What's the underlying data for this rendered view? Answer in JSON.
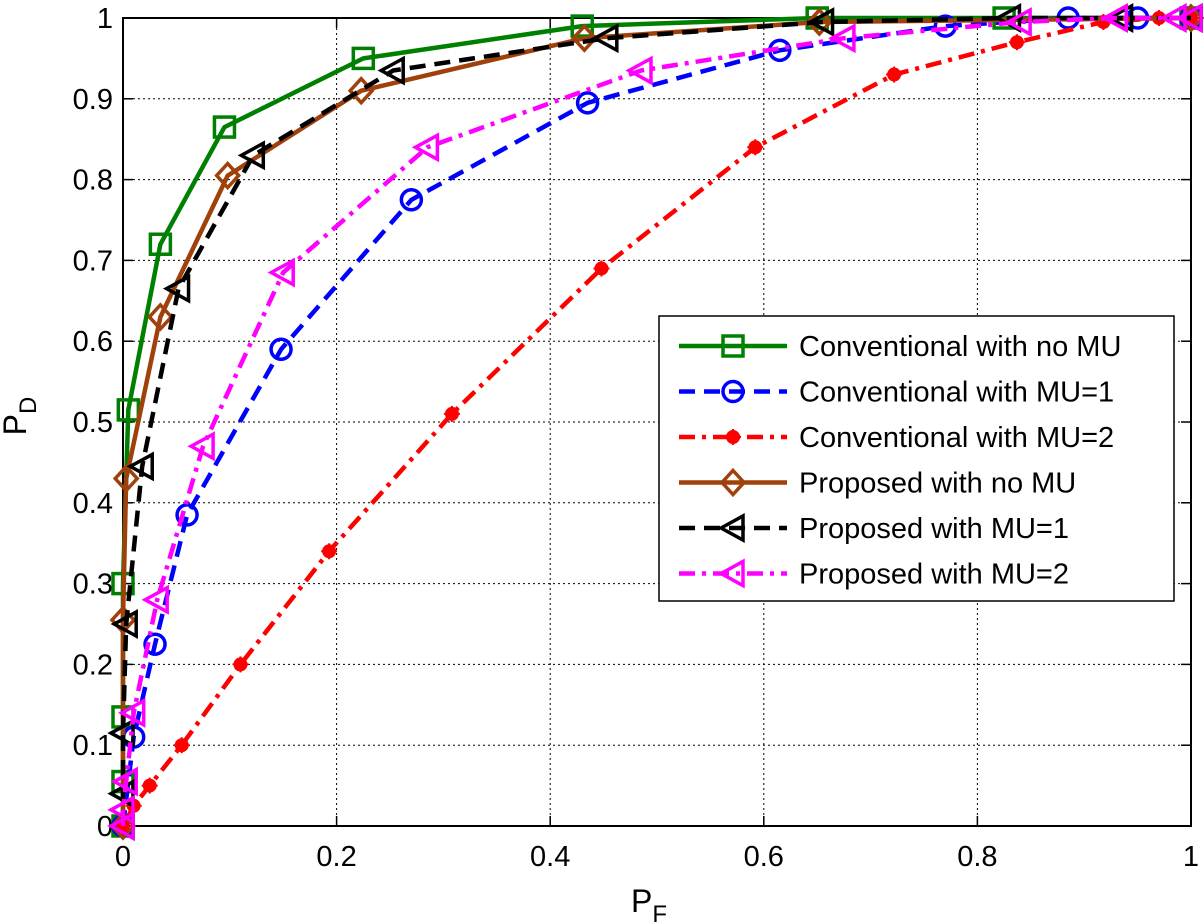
{
  "chart_data": {
    "type": "line",
    "title": "",
    "xlabel": "P",
    "xlabel_sub": "F",
    "ylabel": "P",
    "ylabel_sub": "D",
    "xlim": [
      0,
      1
    ],
    "ylim": [
      0,
      1
    ],
    "grid": true,
    "x_ticks": [
      0,
      0.2,
      0.4,
      0.6,
      0.8,
      1
    ],
    "y_ticks": [
      0,
      0.1,
      0.2,
      0.3,
      0.4,
      0.5,
      0.6,
      0.7,
      0.8,
      0.9,
      1
    ],
    "x_tick_labels": [
      "0",
      "0.2",
      "0.4",
      "0.6",
      "0.8",
      "1"
    ],
    "y_tick_labels": [
      "0",
      "0.1",
      "0.2",
      "0.3",
      "0.4",
      "0.5",
      "0.6",
      "0.7",
      "0.8",
      "0.9",
      "1"
    ],
    "legend_position": "center-right",
    "series": [
      {
        "name": "Conventional with no MU",
        "color": "#008000",
        "dash": "solid",
        "marker": "square",
        "x": [
          0,
          0,
          0,
          0,
          0.005,
          0.035,
          0.095,
          0.225,
          0.43,
          0.65,
          0.825,
          1
        ],
        "y": [
          0,
          0.055,
          0.135,
          0.3,
          0.515,
          0.72,
          0.865,
          0.95,
          0.99,
          1,
          1,
          1
        ]
      },
      {
        "name": "Conventional with MU=1",
        "color": "#0000FF",
        "dash": "dashed",
        "marker": "circle",
        "x": [
          0,
          0.01,
          0.03,
          0.06,
          0.148,
          0.27,
          0.435,
          0.615,
          0.77,
          0.885,
          0.95,
          1
        ],
        "y": [
          0,
          0.11,
          0.225,
          0.385,
          0.59,
          0.775,
          0.895,
          0.96,
          0.99,
          1,
          1,
          1
        ]
      },
      {
        "name": "Conventional with MU=2",
        "color": "#FF0000",
        "dash": "dashdot",
        "marker": "asterisk",
        "x": [
          0,
          0.01,
          0.025,
          0.055,
          0.11,
          0.193,
          0.308,
          0.448,
          0.592,
          0.722,
          0.837,
          0.918,
          0.97,
          1
        ],
        "y": [
          0,
          0.025,
          0.05,
          0.1,
          0.2,
          0.34,
          0.51,
          0.69,
          0.84,
          0.93,
          0.97,
          0.995,
          1,
          1
        ]
      },
      {
        "name": "Proposed with no MU",
        "color": "#A0400A",
        "dash": "solid",
        "marker": "diamond",
        "x": [
          0,
          0,
          0.003,
          0.035,
          0.098,
          0.223,
          0.432,
          0.652,
          1
        ],
        "y": [
          0,
          0.255,
          0.43,
          0.63,
          0.805,
          0.91,
          0.975,
          0.995,
          1
        ]
      },
      {
        "name": "Proposed with MU=1",
        "color": "#000000",
        "dash": "dashed",
        "marker": "triangle-left",
        "x": [
          0,
          0,
          0,
          0.003,
          0.018,
          0.052,
          0.122,
          0.253,
          0.453,
          0.655,
          0.83,
          0.935,
          1
        ],
        "y": [
          0,
          0.04,
          0.115,
          0.25,
          0.445,
          0.665,
          0.83,
          0.935,
          0.975,
          0.995,
          1,
          1,
          1
        ]
      },
      {
        "name": "Proposed with MU=2",
        "color": "#FF00FF",
        "dash": "dashdot",
        "marker": "triangle-left",
        "x": [
          0,
          0,
          0.003,
          0.01,
          0.032,
          0.075,
          0.15,
          0.285,
          0.485,
          0.675,
          0.84,
          0.93,
          0.985,
          1
        ],
        "y": [
          0,
          0.02,
          0.055,
          0.14,
          0.28,
          0.47,
          0.685,
          0.84,
          0.935,
          0.975,
          0.995,
          1,
          1,
          1
        ]
      }
    ]
  }
}
